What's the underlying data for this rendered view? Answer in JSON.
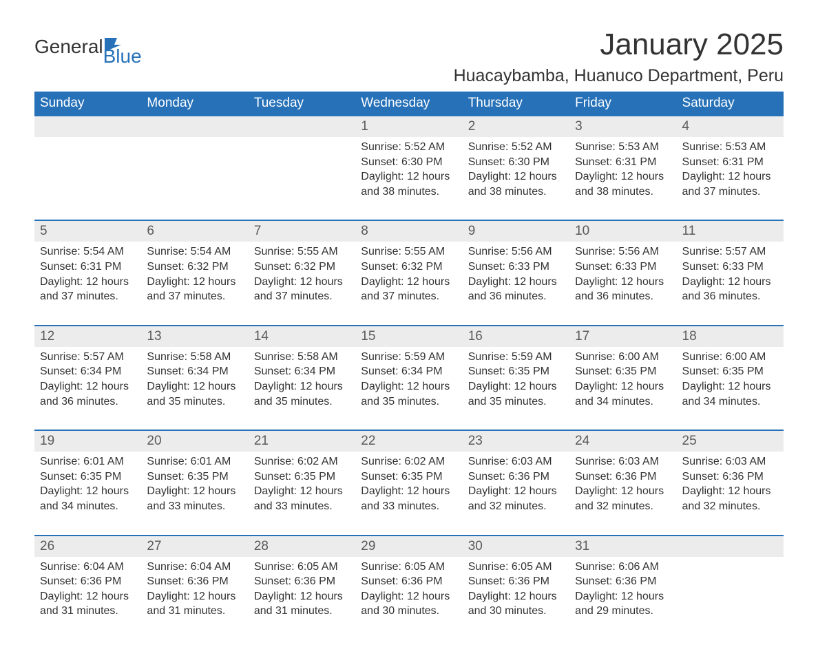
{
  "logo": {
    "text_general": "General",
    "text_blue": "Blue"
  },
  "title": "January 2025",
  "location": "Huacaybamba, Huanuco Department, Peru",
  "colors": {
    "header_bg": "#2671b8",
    "day_number_bg": "#ececec",
    "text_primary": "#333333",
    "text_secondary": "#5a5a5a",
    "border": "#2671b8",
    "background": "#ffffff"
  },
  "typography": {
    "title_fontsize": 44,
    "location_fontsize": 25,
    "header_fontsize": 19,
    "daynum_fontsize": 19,
    "content_fontsize": 16
  },
  "calendar": {
    "type": "table",
    "days_of_week": [
      "Sunday",
      "Monday",
      "Tuesday",
      "Wednesday",
      "Thursday",
      "Friday",
      "Saturday"
    ],
    "weeks": [
      [
        null,
        null,
        null,
        {
          "day": "1",
          "sunrise": "Sunrise: 5:52 AM",
          "sunset": "Sunset: 6:30 PM",
          "daylight": "Daylight: 12 hours and 38 minutes."
        },
        {
          "day": "2",
          "sunrise": "Sunrise: 5:52 AM",
          "sunset": "Sunset: 6:30 PM",
          "daylight": "Daylight: 12 hours and 38 minutes."
        },
        {
          "day": "3",
          "sunrise": "Sunrise: 5:53 AM",
          "sunset": "Sunset: 6:31 PM",
          "daylight": "Daylight: 12 hours and 38 minutes."
        },
        {
          "day": "4",
          "sunrise": "Sunrise: 5:53 AM",
          "sunset": "Sunset: 6:31 PM",
          "daylight": "Daylight: 12 hours and 37 minutes."
        }
      ],
      [
        {
          "day": "5",
          "sunrise": "Sunrise: 5:54 AM",
          "sunset": "Sunset: 6:31 PM",
          "daylight": "Daylight: 12 hours and 37 minutes."
        },
        {
          "day": "6",
          "sunrise": "Sunrise: 5:54 AM",
          "sunset": "Sunset: 6:32 PM",
          "daylight": "Daylight: 12 hours and 37 minutes."
        },
        {
          "day": "7",
          "sunrise": "Sunrise: 5:55 AM",
          "sunset": "Sunset: 6:32 PM",
          "daylight": "Daylight: 12 hours and 37 minutes."
        },
        {
          "day": "8",
          "sunrise": "Sunrise: 5:55 AM",
          "sunset": "Sunset: 6:32 PM",
          "daylight": "Daylight: 12 hours and 37 minutes."
        },
        {
          "day": "9",
          "sunrise": "Sunrise: 5:56 AM",
          "sunset": "Sunset: 6:33 PM",
          "daylight": "Daylight: 12 hours and 36 minutes."
        },
        {
          "day": "10",
          "sunrise": "Sunrise: 5:56 AM",
          "sunset": "Sunset: 6:33 PM",
          "daylight": "Daylight: 12 hours and 36 minutes."
        },
        {
          "day": "11",
          "sunrise": "Sunrise: 5:57 AM",
          "sunset": "Sunset: 6:33 PM",
          "daylight": "Daylight: 12 hours and 36 minutes."
        }
      ],
      [
        {
          "day": "12",
          "sunrise": "Sunrise: 5:57 AM",
          "sunset": "Sunset: 6:34 PM",
          "daylight": "Daylight: 12 hours and 36 minutes."
        },
        {
          "day": "13",
          "sunrise": "Sunrise: 5:58 AM",
          "sunset": "Sunset: 6:34 PM",
          "daylight": "Daylight: 12 hours and 35 minutes."
        },
        {
          "day": "14",
          "sunrise": "Sunrise: 5:58 AM",
          "sunset": "Sunset: 6:34 PM",
          "daylight": "Daylight: 12 hours and 35 minutes."
        },
        {
          "day": "15",
          "sunrise": "Sunrise: 5:59 AM",
          "sunset": "Sunset: 6:34 PM",
          "daylight": "Daylight: 12 hours and 35 minutes."
        },
        {
          "day": "16",
          "sunrise": "Sunrise: 5:59 AM",
          "sunset": "Sunset: 6:35 PM",
          "daylight": "Daylight: 12 hours and 35 minutes."
        },
        {
          "day": "17",
          "sunrise": "Sunrise: 6:00 AM",
          "sunset": "Sunset: 6:35 PM",
          "daylight": "Daylight: 12 hours and 34 minutes."
        },
        {
          "day": "18",
          "sunrise": "Sunrise: 6:00 AM",
          "sunset": "Sunset: 6:35 PM",
          "daylight": "Daylight: 12 hours and 34 minutes."
        }
      ],
      [
        {
          "day": "19",
          "sunrise": "Sunrise: 6:01 AM",
          "sunset": "Sunset: 6:35 PM",
          "daylight": "Daylight: 12 hours and 34 minutes."
        },
        {
          "day": "20",
          "sunrise": "Sunrise: 6:01 AM",
          "sunset": "Sunset: 6:35 PM",
          "daylight": "Daylight: 12 hours and 33 minutes."
        },
        {
          "day": "21",
          "sunrise": "Sunrise: 6:02 AM",
          "sunset": "Sunset: 6:35 PM",
          "daylight": "Daylight: 12 hours and 33 minutes."
        },
        {
          "day": "22",
          "sunrise": "Sunrise: 6:02 AM",
          "sunset": "Sunset: 6:35 PM",
          "daylight": "Daylight: 12 hours and 33 minutes."
        },
        {
          "day": "23",
          "sunrise": "Sunrise: 6:03 AM",
          "sunset": "Sunset: 6:36 PM",
          "daylight": "Daylight: 12 hours and 32 minutes."
        },
        {
          "day": "24",
          "sunrise": "Sunrise: 6:03 AM",
          "sunset": "Sunset: 6:36 PM",
          "daylight": "Daylight: 12 hours and 32 minutes."
        },
        {
          "day": "25",
          "sunrise": "Sunrise: 6:03 AM",
          "sunset": "Sunset: 6:36 PM",
          "daylight": "Daylight: 12 hours and 32 minutes."
        }
      ],
      [
        {
          "day": "26",
          "sunrise": "Sunrise: 6:04 AM",
          "sunset": "Sunset: 6:36 PM",
          "daylight": "Daylight: 12 hours and 31 minutes."
        },
        {
          "day": "27",
          "sunrise": "Sunrise: 6:04 AM",
          "sunset": "Sunset: 6:36 PM",
          "daylight": "Daylight: 12 hours and 31 minutes."
        },
        {
          "day": "28",
          "sunrise": "Sunrise: 6:05 AM",
          "sunset": "Sunset: 6:36 PM",
          "daylight": "Daylight: 12 hours and 31 minutes."
        },
        {
          "day": "29",
          "sunrise": "Sunrise: 6:05 AM",
          "sunset": "Sunset: 6:36 PM",
          "daylight": "Daylight: 12 hours and 30 minutes."
        },
        {
          "day": "30",
          "sunrise": "Sunrise: 6:05 AM",
          "sunset": "Sunset: 6:36 PM",
          "daylight": "Daylight: 12 hours and 30 minutes."
        },
        {
          "day": "31",
          "sunrise": "Sunrise: 6:06 AM",
          "sunset": "Sunset: 6:36 PM",
          "daylight": "Daylight: 12 hours and 29 minutes."
        },
        null
      ]
    ]
  }
}
